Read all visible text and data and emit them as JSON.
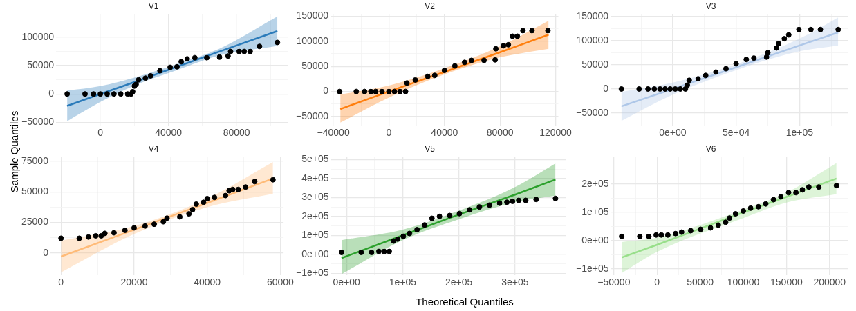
{
  "chart_data": [
    {
      "type": "scatter",
      "title": "V1",
      "xlim": [
        -26000,
        110000
      ],
      "ylim": [
        -56000,
        141000
      ],
      "grid": true,
      "xticks": [
        {
          "value": -20000,
          "label": null
        },
        0,
        {
          "value": 20000,
          "label": null
        },
        40000,
        {
          "value": 60000,
          "label": null
        },
        80000,
        {
          "value": 100000,
          "label": null
        }
      ],
      "yticks": [
        -50000,
        {
          "value": -25000,
          "label": null
        },
        0,
        {
          "value": 25000,
          "label": null
        },
        50000,
        {
          "value": 75000,
          "label": null
        },
        100000,
        {
          "value": 125000,
          "label": null
        }
      ],
      "series": [
        {
          "type": "line",
          "color": "#2b7bba",
          "x": [
            -19500,
            0,
            20000,
            45000,
            70000,
            104000
          ],
          "values": [
            -21000,
            0,
            21000,
            48000,
            75000,
            111000
          ],
          "lower": [
            -48000,
            -14000,
            15000,
            42000,
            68000,
            85000
          ],
          "upper": [
            6000,
            14000,
            29000,
            53000,
            80000,
            137000
          ]
        },
        {
          "color": "#000000",
          "x": [
            -19500,
            -9000,
            -4000,
            0,
            4000,
            8000,
            12000,
            16000,
            18000,
            19000,
            20000,
            21000,
            22500,
            26500,
            29500,
            35000,
            41000,
            45000,
            47500,
            51000,
            55500,
            62500,
            70000,
            75000,
            76500,
            81500,
            84500,
            88000,
            93500,
            104000
          ],
          "values": [
            0,
            0,
            0,
            0,
            0,
            0,
            0,
            0,
            0,
            4000,
            14000,
            17000,
            25000,
            28000,
            32000,
            41000,
            47000,
            48000,
            57000,
            62000,
            64000,
            64000,
            65000,
            67000,
            75000,
            75000,
            75000,
            75000,
            84000,
            91000
          ]
        }
      ]
    },
    {
      "type": "scatter",
      "title": "V2",
      "xlim": [
        -42000,
        122000
      ],
      "ylim": [
        -68000,
        154000
      ],
      "grid": true,
      "xticks": [
        -40000,
        {
          "value": -20000,
          "label": null
        },
        0,
        {
          "value": 20000,
          "label": null
        },
        40000,
        {
          "value": 60000,
          "label": null
        },
        80000,
        {
          "value": 100000,
          "label": null
        },
        120000
      ],
      "yticks": [
        -50000,
        {
          "value": -25000,
          "label": null
        },
        0,
        {
          "value": 25000,
          "label": null
        },
        50000,
        {
          "value": 75000,
          "label": null
        },
        100000,
        {
          "value": 125000,
          "label": null
        },
        150000
      ],
      "series": [
        {
          "type": "line",
          "color": "#ff7f0e",
          "x": [
            -35000,
            0,
            40000,
            80000,
            115000
          ],
          "values": [
            -35000,
            0,
            39000,
            78000,
            113000
          ],
          "lower": [
            -62000,
            -12000,
            34000,
            68000,
            85000
          ],
          "upper": [
            -6000,
            12000,
            46000,
            90000,
            141000
          ]
        },
        {
          "color": "#000000",
          "x": [
            -35500,
            -23500,
            -17500,
            -13000,
            -9500,
            -5000,
            0,
            4000,
            8000,
            12000,
            13000,
            19000,
            28000,
            33000,
            40000,
            47500,
            54500,
            59500,
            68500,
            76500,
            77000,
            82500,
            86000,
            89000,
            92500,
            96500,
            103000,
            114500
          ],
          "values": [
            0,
            0,
            0,
            0,
            0,
            0,
            0,
            0,
            0,
            0,
            17000,
            23000,
            30000,
            32000,
            42000,
            51000,
            58000,
            62000,
            62000,
            63000,
            85000,
            91000,
            93000,
            110000,
            110000,
            121000,
            121000,
            121000
          ]
        }
      ]
    },
    {
      "type": "scatter",
      "title": "V3",
      "xlim": [
        -49000,
        138000
      ],
      "ylim": [
        -76000,
        155000
      ],
      "grid": true,
      "xticks": [
        {
          "value": -25000,
          "label": null
        },
        {
          "value": 0,
          "label": "0e+00"
        },
        {
          "value": 25000,
          "label": null
        },
        {
          "value": 50000,
          "label": "5e+04"
        },
        {
          "value": 75000,
          "label": null
        },
        {
          "value": 100000,
          "label": "1e+05"
        },
        {
          "value": 125000,
          "label": null
        }
      ],
      "yticks": [
        -50000,
        {
          "value": -25000,
          "label": null
        },
        0,
        {
          "value": 25000,
          "label": null
        },
        50000,
        {
          "value": 75000,
          "label": null
        },
        100000,
        {
          "value": 125000,
          "label": null
        },
        150000
      ],
      "series": [
        {
          "type": "line",
          "color": "#aec7e8",
          "x": [
            -40500,
            0,
            50000,
            100000,
            130500
          ],
          "values": [
            -36000,
            0,
            45000,
            90000,
            117000
          ],
          "lower": [
            -66000,
            -12000,
            39000,
            78000,
            90000
          ],
          "upper": [
            -6000,
            13000,
            51000,
            104000,
            148000
          ]
        },
        {
          "color": "#000000",
          "x": [
            -40500,
            -26500,
            -19500,
            -14500,
            -10000,
            -6000,
            -2000,
            2000,
            6000,
            10000,
            11500,
            13000,
            20000,
            26000,
            34000,
            42000,
            50000,
            58000,
            64000,
            74000,
            75000,
            82000,
            83500,
            88000,
            91500,
            99500,
            109000,
            116500,
            130500
          ],
          "values": [
            0,
            0,
            0,
            0,
            0,
            0,
            0,
            0,
            0,
            0,
            8000,
            18000,
            21000,
            28000,
            35000,
            42000,
            52000,
            61000,
            64000,
            66000,
            75000,
            85000,
            94000,
            104000,
            112000,
            123000,
            123000,
            123000,
            123000
          ]
        }
      ]
    },
    {
      "type": "scatter",
      "title": "V4",
      "ylabel": "Sample Quantiles",
      "xlim": [
        -2900,
        60900
      ],
      "ylim": [
        -18400,
        78800
      ],
      "grid": true,
      "xticks": [
        0,
        {
          "value": 10000,
          "label": null
        },
        20000,
        {
          "value": 30000,
          "label": null
        },
        40000,
        {
          "value": 50000,
          "label": null
        },
        60000
      ],
      "yticks": [
        {
          "value": -12500,
          "label": null
        },
        0,
        {
          "value": 12500,
          "label": null
        },
        25000,
        {
          "value": 37500,
          "label": null
        },
        50000,
        {
          "value": 62500,
          "label": null
        },
        75000
      ],
      "series": [
        {
          "type": "line",
          "color": "#ffbb78",
          "x": [
            0,
            20000,
            40000,
            58000
          ],
          "values": [
            -3000,
            19000,
            41000,
            61000
          ],
          "lower": [
            -16000,
            15500,
            37500,
            48500
          ],
          "upper": [
            10000,
            22000,
            44500,
            74500
          ]
        },
        {
          "color": "#000000",
          "x": [
            0,
            5000,
            7500,
            9500,
            11000,
            12000,
            14500,
            17500,
            20000,
            23000,
            25500,
            28000,
            29000,
            32500,
            35000,
            36000,
            37000,
            39000,
            40000,
            42000,
            45000,
            46000,
            47000,
            48500,
            50500,
            53000,
            58000
          ],
          "values": [
            12000,
            12000,
            13000,
            14000,
            14000,
            16000,
            16500,
            18500,
            20500,
            22000,
            23500,
            25500,
            28500,
            29500,
            32000,
            35500,
            40000,
            41500,
            44500,
            45500,
            47000,
            51000,
            52000,
            52000,
            54000,
            58500,
            60000
          ]
        }
      ]
    },
    {
      "type": "scatter",
      "title": "V5",
      "xlabel": "Theoretical Quantiles",
      "xlim": [
        -28000,
        390000
      ],
      "ylim": [
        -111000,
        515000
      ],
      "grid": true,
      "xticks": [
        {
          "value": 0,
          "label": "0e+00"
        },
        {
          "value": 50000,
          "label": null
        },
        {
          "value": 100000,
          "label": "1e+05"
        },
        {
          "value": 150000,
          "label": null
        },
        {
          "value": 200000,
          "label": "2e+05"
        },
        {
          "value": 250000,
          "label": null
        },
        {
          "value": 300000,
          "label": "3e+05"
        },
        {
          "value": 350000,
          "label": null
        }
      ],
      "yticks": [
        {
          "value": -100000,
          "label": "−1e+05"
        },
        {
          "value": -50000,
          "label": null
        },
        {
          "value": 0,
          "label": "0e+00"
        },
        {
          "value": 50000,
          "label": null
        },
        {
          "value": 100000,
          "label": "1e+05"
        },
        {
          "value": 150000,
          "label": null
        },
        {
          "value": 200000,
          "label": "2e+05"
        },
        {
          "value": 250000,
          "label": null
        },
        {
          "value": 300000,
          "label": "3e+05"
        },
        {
          "value": 350000,
          "label": null
        },
        {
          "value": 400000,
          "label": "4e+05"
        },
        {
          "value": 450000,
          "label": null
        },
        {
          "value": 500000,
          "label": "5e+05"
        }
      ],
      "series": [
        {
          "type": "line",
          "color": "#2ca02c",
          "x": [
            -9000,
            100000,
            200000,
            300000,
            372000
          ],
          "values": [
            -20000,
            100000,
            210000,
            315000,
            395000
          ],
          "lower": [
            -105000,
            75000,
            185000,
            275000,
            310000
          ],
          "upper": [
            75000,
            130000,
            230000,
            355000,
            480000
          ]
        },
        {
          "color": "#000000",
          "x": [
            -9000,
            26000,
            44500,
            57500,
            67000,
            76000,
            84000,
            91000,
            101000,
            112000,
            125500,
            139000,
            152000,
            165500,
            183500,
            201000,
            219000,
            236500,
            254500,
            272500,
            285500,
            295500,
            306500,
            319000,
            337500,
            372000
          ],
          "values": [
            10000,
            10000,
            10000,
            15000,
            15000,
            15000,
            70000,
            80000,
            95000,
            110000,
            130000,
            155000,
            190000,
            200000,
            205000,
            215000,
            235000,
            250000,
            260000,
            270000,
            275000,
            280000,
            285000,
            285000,
            290000,
            295000
          ]
        }
      ]
    },
    {
      "type": "scatter",
      "title": "V6",
      "xlim": [
        -53500,
        221000
      ],
      "ylim": [
        -123000,
        297000
      ],
      "grid": true,
      "xticks": [
        -50000,
        {
          "value": -25000,
          "label": null
        },
        0,
        {
          "value": 25000,
          "label": null
        },
        50000,
        {
          "value": 75000,
          "label": null
        },
        100000,
        {
          "value": 125000,
          "label": null
        },
        150000,
        {
          "value": 175000,
          "label": null
        },
        200000
      ],
      "yticks": [
        {
          "value": -100000,
          "label": "−1e+05"
        },
        {
          "value": -50000,
          "label": null
        },
        {
          "value": 0,
          "label": "0e+00"
        },
        {
          "value": 50000,
          "label": null
        },
        {
          "value": 100000,
          "label": "1e+05"
        },
        {
          "value": 150000,
          "label": null
        },
        {
          "value": 200000,
          "label": "2e+05"
        },
        {
          "value": 250000,
          "label": null
        }
      ],
      "series": [
        {
          "type": "line",
          "color": "#98df8a",
          "x": [
            -41000,
            0,
            100000,
            150000,
            208000
          ],
          "values": [
            -60000,
            -15000,
            100000,
            155000,
            220000
          ],
          "lower": [
            -115000,
            -40000,
            80000,
            135000,
            165000
          ],
          "upper": [
            -5000,
            10000,
            110000,
            170000,
            275000
          ]
        },
        {
          "color": "#000000",
          "x": [
            -41000,
            -20000,
            -9500,
            -1000,
            5000,
            12500,
            21500,
            28500,
            39000,
            50500,
            62000,
            71000,
            79500,
            84000,
            91000,
            100000,
            108500,
            117500,
            126000,
            135000,
            143500,
            152500,
            161000,
            168500,
            176000,
            187500,
            208000
          ],
          "values": [
            15000,
            15000,
            15000,
            20000,
            20000,
            20000,
            25000,
            30000,
            35000,
            40000,
            45000,
            55000,
            65000,
            80000,
            95000,
            105000,
            115000,
            120000,
            130000,
            145000,
            155000,
            170000,
            170000,
            180000,
            190000,
            190000,
            195000
          ]
        }
      ]
    }
  ]
}
